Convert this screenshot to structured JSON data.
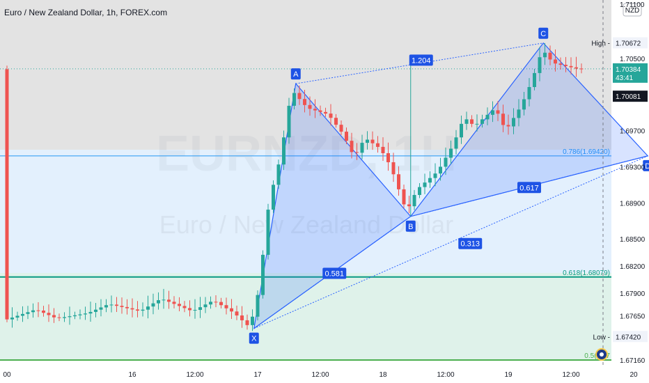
{
  "header": {
    "title": "Euro / New Zealand Dollar, 1h, FOREX.com",
    "watermark_symbol": "EURNZD, 1H",
    "watermark_name": "Euro / New Zealand Dollar"
  },
  "currency_button": "NZD",
  "colors": {
    "up": "#26a69a",
    "down": "#ef5350",
    "pattern_fill": "#2962ff",
    "pattern_label_bg": "#1e53e5",
    "fib_blue": "#2196f3",
    "fib_green": "#089981",
    "upper_band": "#e0e0e0",
    "middle_band": "#e3f0fd",
    "lower_band": "#dff2ea"
  },
  "chart_data": {
    "type": "candlestick",
    "title": "Euro / New Zealand Dollar, 1h, FOREX.com",
    "ylim": [
      1.67,
      1.711
    ],
    "y_ticks": [
      "1.71100",
      "1.70500",
      "1.70100",
      "1.69700",
      "1.69300",
      "1.68900",
      "1.68500",
      "1.68200",
      "1.67900",
      "1.67650",
      "1.67420",
      "1.67160"
    ],
    "y_tick_values": [
      1.711,
      1.705,
      1.701,
      1.697,
      1.693,
      1.689,
      1.685,
      1.682,
      1.679,
      1.6765,
      1.6742,
      1.6716
    ],
    "x_ticks": [
      "00",
      "16",
      "12:00",
      "17",
      "12:00",
      "18",
      "12:00",
      "19",
      "12:00",
      "20"
    ],
    "x_tick_bars": [
      0,
      24,
      36,
      48,
      60,
      72,
      84,
      96,
      108,
      120
    ],
    "candles_start_bar": 0,
    "candles_end_bar": 110,
    "price_labels": {
      "high": {
        "label": "High",
        "value": "1.70672",
        "price": 1.70672
      },
      "current": {
        "value": "1.70384",
        "countdown": "43:41",
        "price": 1.70384
      },
      "level": {
        "value": "1.70081",
        "price": 1.70081
      },
      "low": {
        "label": "Low",
        "value": "1.67420",
        "price": 1.6742
      }
    },
    "fib_levels": [
      {
        "label": "0.786(1.69420)",
        "price": 1.6942
      },
      {
        "label": "0.618(1.68079)",
        "price": 1.68079
      },
      {
        "label": "0.5(1.67",
        "price": 1.6716
      }
    ],
    "pattern": {
      "points": [
        {
          "name": "X",
          "bar": 47.3,
          "price": 1.6751
        },
        {
          "name": "A",
          "bar": 55.3,
          "price": 1.7022
        },
        {
          "name": "B",
          "bar": 77.3,
          "price": 1.6875
        },
        {
          "name": "C",
          "bar": 102.7,
          "price": 1.7067
        },
        {
          "name": "D",
          "bar": 122.7,
          "price": 1.6942
        }
      ],
      "ratios": [
        {
          "label": "1.204",
          "bar": 79.3,
          "price": 1.7048
        },
        {
          "label": "0.617",
          "bar": 100.0,
          "price": 1.6907
        },
        {
          "label": "0.313",
          "bar": 88.7,
          "price": 1.6845
        },
        {
          "label": "0.581",
          "bar": 62.7,
          "price": 1.6812
        }
      ]
    }
  }
}
